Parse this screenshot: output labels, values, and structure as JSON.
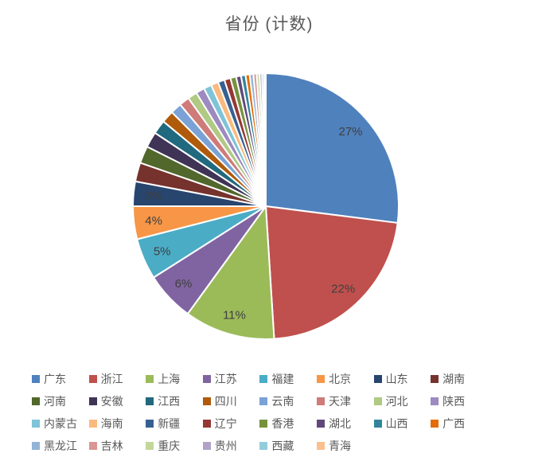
{
  "title": "省份 (计数)",
  "colors": {
    "background": "#FFFFFF",
    "title_text": "#595959",
    "slice_label_text": "#3F3F3F",
    "legend_text": "#595959",
    "slice_separator": "#FFFFFF"
  },
  "visible_slice_labels": [
    "27%",
    "22%",
    "11%",
    "6%",
    "5%",
    "4%",
    "3%"
  ],
  "chart_data": {
    "type": "pie",
    "title": "省份 (计数)",
    "unit": "percent",
    "legend_position": "bottom",
    "label_threshold_pct": 3,
    "series": [
      {
        "name": "广东",
        "value": 27,
        "color": "#4F81BD"
      },
      {
        "name": "浙江",
        "value": 22,
        "color": "#C0504D"
      },
      {
        "name": "上海",
        "value": 11,
        "color": "#9BBB59"
      },
      {
        "name": "江苏",
        "value": 6,
        "color": "#8064A2"
      },
      {
        "name": "福建",
        "value": 5,
        "color": "#4BACC6"
      },
      {
        "name": "北京",
        "value": 4,
        "color": "#F79646"
      },
      {
        "name": "山东",
        "value": 3,
        "color": "#28456E"
      },
      {
        "name": "湖南",
        "value": 2.3,
        "color": "#76322C"
      },
      {
        "name": "河南",
        "value": 2.1,
        "color": "#51672B"
      },
      {
        "name": "安徽",
        "value": 1.9,
        "color": "#3F3455"
      },
      {
        "name": "江西",
        "value": 1.7,
        "color": "#20697E"
      },
      {
        "name": "四川",
        "value": 1.5,
        "color": "#B05A0B"
      },
      {
        "name": "云南",
        "value": 1.35,
        "color": "#7BA2D6"
      },
      {
        "name": "天津",
        "value": 1.25,
        "color": "#CE7B79"
      },
      {
        "name": "河北",
        "value": 1.15,
        "color": "#B0C983"
      },
      {
        "name": "陕西",
        "value": 1.05,
        "color": "#9C8AC0"
      },
      {
        "name": "内蒙古",
        "value": 0.95,
        "color": "#7FC4D8"
      },
      {
        "name": "海南",
        "value": 0.9,
        "color": "#FAB97E"
      },
      {
        "name": "新疆",
        "value": 0.8,
        "color": "#376092"
      },
      {
        "name": "辽宁",
        "value": 0.75,
        "color": "#953734"
      },
      {
        "name": "香港",
        "value": 0.7,
        "color": "#76923C"
      },
      {
        "name": "湖北",
        "value": 0.6,
        "color": "#5F497A"
      },
      {
        "name": "山西",
        "value": 0.55,
        "color": "#31859B"
      },
      {
        "name": "广西",
        "value": 0.5,
        "color": "#E36C09"
      },
      {
        "name": "黑龙江",
        "value": 0.45,
        "color": "#95B3D7"
      },
      {
        "name": "吉林",
        "value": 0.4,
        "color": "#D99694"
      },
      {
        "name": "重庆",
        "value": 0.35,
        "color": "#C3D69B"
      },
      {
        "name": "贵州",
        "value": 0.3,
        "color": "#B2A2C7"
      },
      {
        "name": "西藏",
        "value": 0.25,
        "color": "#92CDDC"
      },
      {
        "name": "青海",
        "value": 0.2,
        "color": "#FAC090"
      }
    ]
  }
}
